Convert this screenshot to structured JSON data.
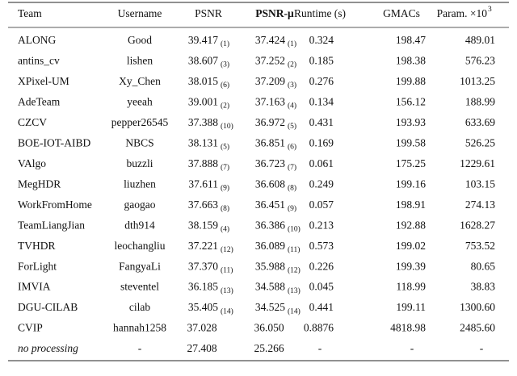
{
  "table": {
    "header": {
      "team": "Team",
      "user": "Username",
      "psnr": "PSNR",
      "mu": "PSNR-μ",
      "runtime": "Runtime (s)",
      "gmacs": "GMACs",
      "params": "Param. ×10",
      "params_exp": "3"
    },
    "rows": [
      {
        "team": "ALONG",
        "user": "Good",
        "psnr": "39.417",
        "psnr_rank": "(1)",
        "mu": "37.424",
        "mu_rank": "(1)",
        "runtime": "0.324",
        "gmacs": "198.47",
        "params": "489.01"
      },
      {
        "team": "antins_cv",
        "user": "lishen",
        "psnr": "38.607",
        "psnr_rank": "(3)",
        "mu": "37.252",
        "mu_rank": "(2)",
        "runtime": "0.185",
        "gmacs": "198.38",
        "params": "576.23"
      },
      {
        "team": "XPixel-UM",
        "user": "Xy_Chen",
        "psnr": "38.015",
        "psnr_rank": "(6)",
        "mu": "37.209",
        "mu_rank": "(3)",
        "runtime": "0.276",
        "gmacs": "199.88",
        "params": "1013.25"
      },
      {
        "team": "AdeTeam",
        "user": "yeeah",
        "psnr": "39.001",
        "psnr_rank": "(2)",
        "mu": "37.163",
        "mu_rank": "(4)",
        "runtime": "0.134",
        "gmacs": "156.12",
        "params": "188.99"
      },
      {
        "team": "CZCV",
        "user": "pepper26545",
        "psnr": "37.388",
        "psnr_rank": "(10)",
        "mu": "36.972",
        "mu_rank": "(5)",
        "runtime": "0.431",
        "gmacs": "193.93",
        "params": "633.69"
      },
      {
        "team": "BOE-IOT-AIBD",
        "user": "NBCS",
        "psnr": "38.131",
        "psnr_rank": "(5)",
        "mu": "36.851",
        "mu_rank": "(6)",
        "runtime": "0.169",
        "gmacs": "199.58",
        "params": "526.25"
      },
      {
        "team": "VAlgo",
        "user": "buzzli",
        "psnr": "37.888",
        "psnr_rank": "(7)",
        "mu": "36.723",
        "mu_rank": "(7)",
        "runtime": "0.061",
        "gmacs": "175.25",
        "params": "1229.61"
      },
      {
        "team": "MegHDR",
        "user": "liuzhen",
        "psnr": "37.611",
        "psnr_rank": "(9)",
        "mu": "36.608",
        "mu_rank": "(8)",
        "runtime": "0.249",
        "gmacs": "199.16",
        "params": "103.15"
      },
      {
        "team": "WorkFromHome",
        "user": "gaogao",
        "psnr": "37.663",
        "psnr_rank": "(8)",
        "mu": "36.451",
        "mu_rank": "(9)",
        "runtime": "0.057",
        "gmacs": "198.91",
        "params": "274.13"
      },
      {
        "team": "TeamLiangJian",
        "user": "dth914",
        "psnr": "38.159",
        "psnr_rank": "(4)",
        "mu": "36.386",
        "mu_rank": "(10)",
        "runtime": "0.213",
        "gmacs": "192.88",
        "params": "1628.27"
      },
      {
        "team": "TVHDR",
        "user": "leochangliu",
        "psnr": "37.221",
        "psnr_rank": "(12)",
        "mu": "36.089",
        "mu_rank": "(11)",
        "runtime": "0.573",
        "gmacs": "199.02",
        "params": "753.52"
      },
      {
        "team": "ForLight",
        "user": "FangyaLi",
        "psnr": "37.370",
        "psnr_rank": "(11)",
        "mu": "35.988",
        "mu_rank": "(12)",
        "runtime": "0.226",
        "gmacs": "199.39",
        "params": "80.65"
      },
      {
        "team": "IMVIA",
        "user": "steventel",
        "psnr": "36.185",
        "psnr_rank": "(13)",
        "mu": "34.588",
        "mu_rank": "(13)",
        "runtime": "0.045",
        "gmacs": "118.99",
        "params": "38.83"
      },
      {
        "team": "DGU-CILAB",
        "user": "cilab",
        "psnr": "35.405",
        "psnr_rank": "(14)",
        "mu": "34.525",
        "mu_rank": "(14)",
        "runtime": "0.441",
        "gmacs": "199.11",
        "params": "1300.60"
      },
      {
        "team": "CVIP",
        "user": "hannah1258",
        "psnr": "37.028",
        "mu": "36.050",
        "runtime": "0.8876",
        "gmacs": "4818.98",
        "params": "2485.60"
      },
      {
        "team": "no processing",
        "italic": true,
        "user": "-",
        "psnr": "27.408",
        "mu": "25.266",
        "runtime": "-",
        "gmacs": "-",
        "params": "-"
      }
    ]
  }
}
